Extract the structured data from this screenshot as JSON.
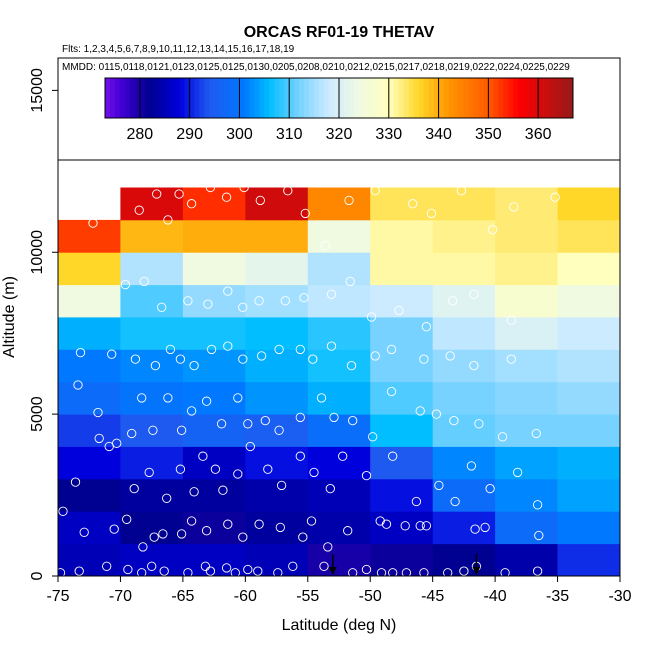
{
  "chart_data": {
    "type": "heatmap",
    "title": "ORCAS RF01-19 THETAV",
    "subtitle_flights": "Flts: 1,2,3,4,5,6,7,8,9,10,11,12,13,14,15,16,17,18,19",
    "subtitle_dates": "MMDD: 0115,0118,0121,0123,0125,0125,0130,0205,0208,0210,0212,0215,0217,0218,0219,0222,0224,0225,0229",
    "xlabel": "Latitude (deg N)",
    "ylabel": "Altitude (m)",
    "xlim": [
      -75,
      -30
    ],
    "ylim": [
      0,
      16000
    ],
    "xticks": [
      -75,
      -70,
      -65,
      -60,
      -55,
      -50,
      -45,
      -40,
      -35,
      -30
    ],
    "yticks": [
      0,
      5000,
      10000,
      15000
    ],
    "colorbar": {
      "range": [
        273,
        367
      ],
      "ticks": [
        280,
        290,
        300,
        310,
        320,
        330,
        340,
        350,
        360
      ]
    },
    "bin_width_deg": 5,
    "bin_height_m": 1000,
    "cells": [
      {
        "lat": -75,
        "alt": 0,
        "value": 285
      },
      {
        "lat": -70,
        "alt": 0,
        "value": 286
      },
      {
        "lat": -65,
        "alt": 0,
        "value": 286
      },
      {
        "lat": -60,
        "alt": 0,
        "value": 285
      },
      {
        "lat": -55,
        "alt": 0,
        "value": 280
      },
      {
        "lat": -50,
        "alt": 0,
        "value": 281
      },
      {
        "lat": -45,
        "alt": 0,
        "value": 282
      },
      {
        "lat": -40,
        "alt": 0,
        "value": 284
      },
      {
        "lat": -35,
        "alt": 0,
        "value": 291
      },
      {
        "lat": -75,
        "alt": 1000,
        "value": 286
      },
      {
        "lat": -70,
        "alt": 1000,
        "value": 282
      },
      {
        "lat": -65,
        "alt": 1000,
        "value": 281
      },
      {
        "lat": -60,
        "alt": 1000,
        "value": 283
      },
      {
        "lat": -55,
        "alt": 1000,
        "value": 284
      },
      {
        "lat": -50,
        "alt": 1000,
        "value": 286
      },
      {
        "lat": -45,
        "alt": 1000,
        "value": 290
      },
      {
        "lat": -40,
        "alt": 1000,
        "value": 298
      },
      {
        "lat": -35,
        "alt": 1000,
        "value": 301
      },
      {
        "lat": -75,
        "alt": 2000,
        "value": 282
      },
      {
        "lat": -70,
        "alt": 2000,
        "value": 283
      },
      {
        "lat": -65,
        "alt": 2000,
        "value": 283
      },
      {
        "lat": -60,
        "alt": 2000,
        "value": 284
      },
      {
        "lat": -55,
        "alt": 2000,
        "value": 285
      },
      {
        "lat": -50,
        "alt": 2000,
        "value": 289
      },
      {
        "lat": -45,
        "alt": 2000,
        "value": 298
      },
      {
        "lat": -40,
        "alt": 2000,
        "value": 302
      },
      {
        "lat": -35,
        "alt": 2000,
        "value": 304
      },
      {
        "lat": -75,
        "alt": 3000,
        "value": 288
      },
      {
        "lat": -70,
        "alt": 3000,
        "value": 290
      },
      {
        "lat": -65,
        "alt": 3000,
        "value": 286
      },
      {
        "lat": -60,
        "alt": 3000,
        "value": 289
      },
      {
        "lat": -55,
        "alt": 3000,
        "value": 288
      },
      {
        "lat": -50,
        "alt": 3000,
        "value": 294
      },
      {
        "lat": -45,
        "alt": 3000,
        "value": 302
      },
      {
        "lat": -40,
        "alt": 3000,
        "value": 304
      },
      {
        "lat": -35,
        "alt": 3000,
        "value": 305
      },
      {
        "lat": -75,
        "alt": 4000,
        "value": 292
      },
      {
        "lat": -70,
        "alt": 4000,
        "value": 294
      },
      {
        "lat": -65,
        "alt": 4000,
        "value": 296
      },
      {
        "lat": -60,
        "alt": 4000,
        "value": 295
      },
      {
        "lat": -55,
        "alt": 4000,
        "value": 299
      },
      {
        "lat": -50,
        "alt": 4000,
        "value": 306
      },
      {
        "lat": -45,
        "alt": 4000,
        "value": 311
      },
      {
        "lat": -40,
        "alt": 4000,
        "value": 312
      },
      {
        "lat": -35,
        "alt": 4000,
        "value": 312
      },
      {
        "lat": -75,
        "alt": 5000,
        "value": 298
      },
      {
        "lat": -70,
        "alt": 5000,
        "value": 300
      },
      {
        "lat": -65,
        "alt": 5000,
        "value": 301
      },
      {
        "lat": -60,
        "alt": 5000,
        "value": 303
      },
      {
        "lat": -55,
        "alt": 5000,
        "value": 305
      },
      {
        "lat": -50,
        "alt": 5000,
        "value": 310
      },
      {
        "lat": -45,
        "alt": 5000,
        "value": 312
      },
      {
        "lat": -40,
        "alt": 5000,
        "value": 313
      },
      {
        "lat": -35,
        "alt": 5000,
        "value": 314
      },
      {
        "lat": -75,
        "alt": 6000,
        "value": 301
      },
      {
        "lat": -70,
        "alt": 6000,
        "value": 302
      },
      {
        "lat": -65,
        "alt": 6000,
        "value": 303
      },
      {
        "lat": -60,
        "alt": 6000,
        "value": 305
      },
      {
        "lat": -55,
        "alt": 6000,
        "value": 307
      },
      {
        "lat": -50,
        "alt": 6000,
        "value": 312
      },
      {
        "lat": -45,
        "alt": 6000,
        "value": 314
      },
      {
        "lat": -40,
        "alt": 6000,
        "value": 315
      },
      {
        "lat": -35,
        "alt": 6000,
        "value": 316
      },
      {
        "lat": -75,
        "alt": 7000,
        "value": 305
      },
      {
        "lat": -70,
        "alt": 7000,
        "value": 307
      },
      {
        "lat": -65,
        "alt": 7000,
        "value": 307
      },
      {
        "lat": -60,
        "alt": 7000,
        "value": 306
      },
      {
        "lat": -55,
        "alt": 7000,
        "value": 308
      },
      {
        "lat": -50,
        "alt": 7000,
        "value": 312
      },
      {
        "lat": -45,
        "alt": 7000,
        "value": 317
      },
      {
        "lat": -40,
        "alt": 7000,
        "value": 320
      },
      {
        "lat": -35,
        "alt": 7000,
        "value": 318
      },
      {
        "lat": -75,
        "alt": 8000,
        "value": 324
      },
      {
        "lat": -70,
        "alt": 8000,
        "value": 310
      },
      {
        "lat": -65,
        "alt": 8000,
        "value": 314
      },
      {
        "lat": -60,
        "alt": 8000,
        "value": 315
      },
      {
        "lat": -55,
        "alt": 8000,
        "value": 317
      },
      {
        "lat": -50,
        "alt": 8000,
        "value": 318
      },
      {
        "lat": -45,
        "alt": 8000,
        "value": 321
      },
      {
        "lat": -40,
        "alt": 8000,
        "value": 327
      },
      {
        "lat": -35,
        "alt": 8000,
        "value": 324
      },
      {
        "lat": -75,
        "alt": 9000,
        "value": 336
      },
      {
        "lat": -70,
        "alt": 9000,
        "value": 316
      },
      {
        "lat": -65,
        "alt": 9000,
        "value": 324
      },
      {
        "lat": -60,
        "alt": 9000,
        "value": 322
      },
      {
        "lat": -55,
        "alt": 9000,
        "value": 316
      },
      {
        "lat": -50,
        "alt": 9000,
        "value": 331
      },
      {
        "lat": -45,
        "alt": 9000,
        "value": 331
      },
      {
        "lat": -40,
        "alt": 9000,
        "value": 332
      },
      {
        "lat": -35,
        "alt": 9000,
        "value": 330
      },
      {
        "lat": -75,
        "alt": 10000,
        "value": 352
      },
      {
        "lat": -70,
        "alt": 10000,
        "value": 339
      },
      {
        "lat": -65,
        "alt": 10000,
        "value": 340
      },
      {
        "lat": -60,
        "alt": 10000,
        "value": 340
      },
      {
        "lat": -55,
        "alt": 10000,
        "value": 324
      },
      {
        "lat": -50,
        "alt": 10000,
        "value": 331
      },
      {
        "lat": -45,
        "alt": 10000,
        "value": 332
      },
      {
        "lat": -40,
        "alt": 10000,
        "value": 333
      },
      {
        "lat": -35,
        "alt": 10000,
        "value": 334
      },
      {
        "lat": -70,
        "alt": 11000,
        "value": 360
      },
      {
        "lat": -65,
        "alt": 11000,
        "value": 353
      },
      {
        "lat": -60,
        "alt": 11000,
        "value": 361
      },
      {
        "lat": -55,
        "alt": 11000,
        "value": 344
      },
      {
        "lat": -50,
        "alt": 11000,
        "value": 334
      },
      {
        "lat": -45,
        "alt": 11000,
        "value": 334
      },
      {
        "lat": -40,
        "alt": 11000,
        "value": 333
      },
      {
        "lat": -35,
        "alt": 11000,
        "value": 336
      }
    ],
    "observations": [
      [
        -74.8,
        100
      ],
      [
        -73.3,
        150
      ],
      [
        -71.1,
        300
      ],
      [
        -69.4,
        200
      ],
      [
        -68.3,
        100
      ],
      [
        -67.5,
        300
      ],
      [
        -66.5,
        150
      ],
      [
        -64.6,
        100
      ],
      [
        -63.2,
        300
      ],
      [
        -62.8,
        150
      ],
      [
        -61.5,
        250
      ],
      [
        -60.8,
        100
      ],
      [
        -59.8,
        200
      ],
      [
        -59.0,
        150
      ],
      [
        -57.4,
        100
      ],
      [
        -56.2,
        300
      ],
      [
        -53.7,
        300
      ],
      [
        -51.4,
        100
      ],
      [
        -50.3,
        200
      ],
      [
        -49.1,
        100
      ],
      [
        -48.2,
        100
      ],
      [
        -47.1,
        100
      ],
      [
        -45.7,
        100
      ],
      [
        -43.8,
        100
      ],
      [
        -42.5,
        150
      ],
      [
        -41.5,
        300
      ],
      [
        -39.2,
        100
      ],
      [
        -36.6,
        150
      ],
      [
        -74.6,
        2000
      ],
      [
        -72.9,
        1350
      ],
      [
        -70.5,
        1450
      ],
      [
        -69.5,
        1750
      ],
      [
        -68.2,
        900
      ],
      [
        -67.3,
        1200
      ],
      [
        -66.6,
        1300
      ],
      [
        -65.1,
        1300
      ],
      [
        -64.3,
        1700
      ],
      [
        -63.1,
        1400
      ],
      [
        -61.4,
        1600
      ],
      [
        -60.2,
        1200
      ],
      [
        -58.9,
        1600
      ],
      [
        -57.2,
        1500
      ],
      [
        -55.4,
        1200
      ],
      [
        -54.7,
        1700
      ],
      [
        -53.4,
        900
      ],
      [
        -51.8,
        1400
      ],
      [
        -49.2,
        1700
      ],
      [
        -48.7,
        1600
      ],
      [
        -47.2,
        1550
      ],
      [
        -46.0,
        1550
      ],
      [
        -45.5,
        1550
      ],
      [
        -41.6,
        1450
      ],
      [
        -40.8,
        1500
      ],
      [
        -36.5,
        1250
      ],
      [
        -73.6,
        2900
      ],
      [
        -71.7,
        4250
      ],
      [
        -70.3,
        4100
      ],
      [
        -68.9,
        2700
      ],
      [
        -67.7,
        3200
      ],
      [
        -66.3,
        2400
      ],
      [
        -65.2,
        3300
      ],
      [
        -64.1,
        2600
      ],
      [
        -63.4,
        3700
      ],
      [
        -62.4,
        3300
      ],
      [
        -61.8,
        2650
      ],
      [
        -60.6,
        3150
      ],
      [
        -59.6,
        4000
      ],
      [
        -58.2,
        3300
      ],
      [
        -57.1,
        2800
      ],
      [
        -55.6,
        3700
      ],
      [
        -54.5,
        3200
      ],
      [
        -53.2,
        2700
      ],
      [
        -52.2,
        3700
      ],
      [
        -50.3,
        3100
      ],
      [
        -48.2,
        3700
      ],
      [
        -46.3,
        2300
      ],
      [
        -44.5,
        2800
      ],
      [
        -43.2,
        2300
      ],
      [
        -41.9,
        3400
      ],
      [
        -40.4,
        2700
      ],
      [
        -38.2,
        3200
      ],
      [
        -36.6,
        2200
      ],
      [
        -73.4,
        5900
      ],
      [
        -71.8,
        5050
      ],
      [
        -70.9,
        4000
      ],
      [
        -69.1,
        4400
      ],
      [
        -68.3,
        5500
      ],
      [
        -67.4,
        4500
      ],
      [
        -66.2,
        5500
      ],
      [
        -65.1,
        4500
      ],
      [
        -64.3,
        5100
      ],
      [
        -63.1,
        5400
      ],
      [
        -61.9,
        4700
      ],
      [
        -60.6,
        5500
      ],
      [
        -59.8,
        4700
      ],
      [
        -58.4,
        4800
      ],
      [
        -57.3,
        4500
      ],
      [
        -55.6,
        4900
      ],
      [
        -53.9,
        5500
      ],
      [
        -52.9,
        4900
      ],
      [
        -51.4,
        4800
      ],
      [
        -49.8,
        4300
      ],
      [
        -48.3,
        5700
      ],
      [
        -46.0,
        5100
      ],
      [
        -44.7,
        5000
      ],
      [
        -43.3,
        4800
      ],
      [
        -41.3,
        4700
      ],
      [
        -39.4,
        4300
      ],
      [
        -36.7,
        4400
      ],
      [
        -73.2,
        6900
      ],
      [
        -70.7,
        6850
      ],
      [
        -68.8,
        6700
      ],
      [
        -67.2,
        6500
      ],
      [
        -66.0,
        7000
      ],
      [
        -65.2,
        6700
      ],
      [
        -64.1,
        6500
      ],
      [
        -62.7,
        7000
      ],
      [
        -61.4,
        7100
      ],
      [
        -60.2,
        6700
      ],
      [
        -58.7,
        6800
      ],
      [
        -57.3,
        7000
      ],
      [
        -55.6,
        7000
      ],
      [
        -54.6,
        6700
      ],
      [
        -53.1,
        7100
      ],
      [
        -51.5,
        6500
      ],
      [
        -49.6,
        6800
      ],
      [
        -48.3,
        7000
      ],
      [
        -45.7,
        6700
      ],
      [
        -43.6,
        6800
      ],
      [
        -41.7,
        6500
      ],
      [
        -38.7,
        6700
      ],
      [
        -69.6,
        9000
      ],
      [
        -68.1,
        9100
      ],
      [
        -66.7,
        8300
      ],
      [
        -64.6,
        8500
      ],
      [
        -63.0,
        8400
      ],
      [
        -61.4,
        8800
      ],
      [
        -60.2,
        8300
      ],
      [
        -58.9,
        8500
      ],
      [
        -56.8,
        8500
      ],
      [
        -55.3,
        8600
      ],
      [
        -53.1,
        8700
      ],
      [
        -51.6,
        9100
      ],
      [
        -49.9,
        8000
      ],
      [
        -47.7,
        8200
      ],
      [
        -45.5,
        7700
      ],
      [
        -43.4,
        8500
      ],
      [
        -41.7,
        8700
      ],
      [
        -38.7,
        7900
      ],
      [
        -72.2,
        10900
      ],
      [
        -68.5,
        11300
      ],
      [
        -67.1,
        11800
      ],
      [
        -66.2,
        11000
      ],
      [
        -65.3,
        11800
      ],
      [
        -64.3,
        11500
      ],
      [
        -62.8,
        12000
      ],
      [
        -61.5,
        11700
      ],
      [
        -60.1,
        12000
      ],
      [
        -58.8,
        11600
      ],
      [
        -56.6,
        11900
      ],
      [
        -55.2,
        11200
      ],
      [
        -53.6,
        10200
      ],
      [
        -51.7,
        11600
      ],
      [
        -49.6,
        11900
      ],
      [
        -46.6,
        11500
      ],
      [
        -45.1,
        11200
      ],
      [
        -42.7,
        11900
      ],
      [
        -40.2,
        10700
      ],
      [
        -38.5,
        11400
      ],
      [
        -35.2,
        11700
      ]
    ],
    "markers": [
      -53.0,
      -41.5
    ]
  }
}
